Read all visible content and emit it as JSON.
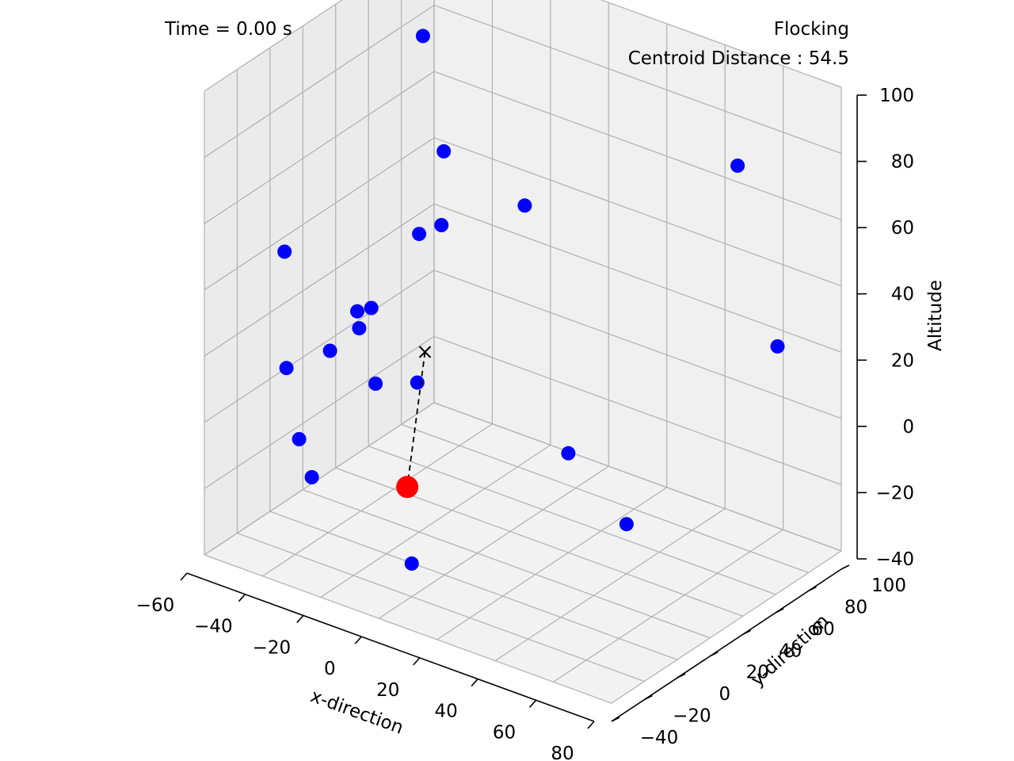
{
  "header": {
    "time_text": "Time = 0.00 s",
    "mode_text": "Flocking",
    "centroid_text": "Centroid Distance : 54.5"
  },
  "chart_data": {
    "type": "scatter3d",
    "title": "",
    "xlabel": "x-direction",
    "ylabel": "y-direction",
    "zlabel": "Altitude",
    "xticks": [
      -60,
      -40,
      -20,
      0,
      20,
      40,
      60,
      80
    ],
    "yticks": [
      -40,
      -20,
      0,
      20,
      40,
      60,
      80,
      100
    ],
    "zticks": [
      -40,
      -20,
      0,
      20,
      40,
      60,
      80,
      100
    ],
    "xlim": [
      -60,
      80
    ],
    "ylim": [
      -40,
      100
    ],
    "zlim": [
      -40,
      100
    ],
    "grid": true,
    "colors": {
      "agents": "#0000ff",
      "target": "#ff0000",
      "centroid": "#000000",
      "pane": "#f2f2f2",
      "grid": "#b0b0b0"
    },
    "agents": [
      {
        "x": -30,
        "y": 40,
        "z": 100
      },
      {
        "x": -20,
        "y": 35,
        "z": 70
      },
      {
        "x": -20,
        "y": 20,
        "z": 50
      },
      {
        "x": -18,
        "y": 30,
        "z": 50
      },
      {
        "x": 5,
        "y": 40,
        "z": 60
      },
      {
        "x": 50,
        "y": 90,
        "z": 70
      },
      {
        "x": 75,
        "y": 70,
        "z": 30
      },
      {
        "x": -55,
        "y": 0,
        "z": 40
      },
      {
        "x": -30,
        "y": 0,
        "z": 30
      },
      {
        "x": -28,
        "y": 5,
        "z": 30
      },
      {
        "x": -35,
        "y": 10,
        "z": 20
      },
      {
        "x": -45,
        "y": 10,
        "z": 10
      },
      {
        "x": -35,
        "y": 20,
        "z": 0
      },
      {
        "x": -15,
        "y": 10,
        "z": 10
      },
      {
        "x": -60,
        "y": 10,
        "z": 0
      },
      {
        "x": -50,
        "y": 0,
        "z": -15
      },
      {
        "x": 20,
        "y": 40,
        "z": -10
      },
      {
        "x": 40,
        "y": 40,
        "z": -25
      },
      {
        "x": -40,
        "y": -10,
        "z": -20
      },
      {
        "x": 0,
        "y": -20,
        "z": -30
      }
    ],
    "target": {
      "x": -10,
      "y": -5,
      "z": -15
    },
    "centroid": {
      "x": -18,
      "y": 20,
      "z": 15
    }
  }
}
